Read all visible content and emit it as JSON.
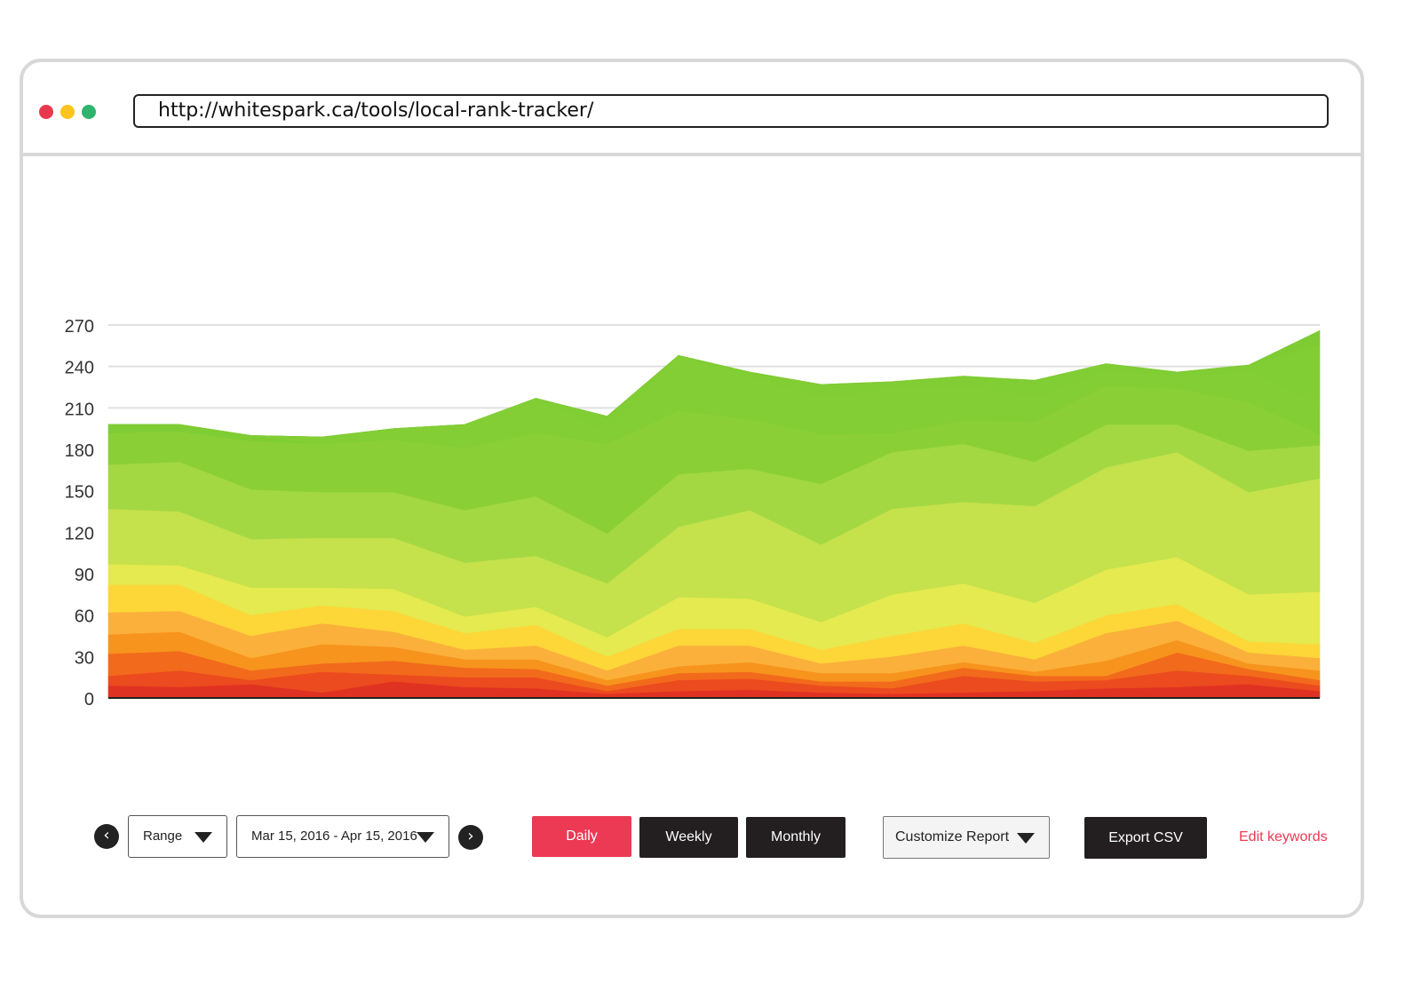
{
  "browser": {
    "url": "http://whitespark.ca/tools/local-rank-tracker/",
    "window_dots": [
      "#e8384f",
      "#fcc41e",
      "#2fb36d"
    ]
  },
  "controls": {
    "prev_icon": "chevron-left-icon",
    "next_icon": "chevron-right-icon",
    "range_label": "Range",
    "date_range": "Mar 15, 2016 - Apr 15, 2016",
    "tabs": [
      {
        "label": "Daily",
        "active": true
      },
      {
        "label": "Weekly",
        "active": false
      },
      {
        "label": "Monthly",
        "active": false
      }
    ],
    "customize_label": "Customize Report",
    "export_label": "Export CSV",
    "edit_keywords_label": "Edit keywords",
    "accent_color": "#ec3954",
    "button_color": "#231f20"
  },
  "chart_data": {
    "type": "area",
    "stacked": true,
    "ylim": [
      0,
      270
    ],
    "yticks": [
      0,
      30,
      60,
      90,
      120,
      150,
      180,
      210,
      240,
      270
    ],
    "grid": true,
    "x_count": 18,
    "series": [
      {
        "color": "#e03222",
        "values": [
          9,
          8,
          10,
          4,
          12,
          8,
          7,
          3,
          5,
          6,
          4,
          3,
          4,
          5,
          7,
          8,
          10,
          5
        ]
      },
      {
        "color": "#ec4a1f",
        "values": [
          7,
          12,
          3,
          15,
          5,
          7,
          8,
          2,
          8,
          8,
          5,
          4,
          12,
          7,
          6,
          12,
          6,
          4
        ]
      },
      {
        "color": "#f26a1b",
        "values": [
          16,
          14,
          7,
          6,
          10,
          7,
          6,
          4,
          5,
          5,
          3,
          5,
          6,
          4,
          3,
          13,
          5,
          4
        ]
      },
      {
        "color": "#f7941d",
        "values": [
          14,
          14,
          9,
          14,
          10,
          6,
          7,
          4,
          5,
          7,
          6,
          6,
          4,
          3,
          11,
          9,
          4,
          7
        ]
      },
      {
        "color": "#fbb03b",
        "values": [
          16,
          15,
          16,
          15,
          11,
          7,
          10,
          7,
          15,
          12,
          7,
          12,
          12,
          9,
          20,
          14,
          8,
          9
        ]
      },
      {
        "color": "#fdd638",
        "values": [
          20,
          19,
          15,
          13,
          15,
          12,
          15,
          10,
          12,
          12,
          10,
          15,
          16,
          12,
          13,
          12,
          8,
          10
        ]
      },
      {
        "color": "#e4ea4f",
        "values": [
          15,
          14,
          20,
          13,
          16,
          12,
          13,
          14,
          23,
          22,
          20,
          30,
          29,
          29,
          33,
          34,
          34,
          38
        ]
      },
      {
        "color": "#c5e14b",
        "values": [
          40,
          39,
          35,
          36,
          37,
          39,
          37,
          39,
          51,
          64,
          56,
          62,
          59,
          70,
          74,
          76,
          74,
          82
        ]
      },
      {
        "color": "#a3d843",
        "values": [
          32,
          36,
          36,
          33,
          33,
          38,
          43,
          36,
          38,
          30,
          44,
          41,
          42,
          32,
          31,
          20,
          30,
          24
        ]
      },
      {
        "color": "#8bcf37",
        "values": [
          23,
          22,
          35,
          35,
          38,
          45,
          46,
          65,
          46,
          36,
          36,
          14,
          17,
          29,
          28,
          26,
          35,
          8
        ]
      },
      {
        "color": "#7ecd34",
        "values": [
          6,
          5,
          0,
          0,
          0,
          0,
          0,
          0,
          0,
          0,
          0,
          0,
          0,
          0,
          0,
          0,
          0,
          0
        ]
      },
      {
        "color": "#7fcd33",
        "values": [
          0,
          0,
          4,
          0,
          0,
          0,
          0,
          0,
          0,
          0,
          0,
          0,
          0,
          0,
          0,
          0,
          0,
          0
        ]
      },
      {
        "color": "#83ce35",
        "values": [
          0,
          0,
          0,
          5,
          8,
          17,
          25,
          9,
          40,
          30,
          27,
          32,
          25,
          18,
          11,
          9,
          22,
          23
        ]
      },
      {
        "color": "#80cd34",
        "values": [
          0,
          0,
          0,
          0,
          0,
          0,
          0,
          11,
          0,
          4,
          9,
          5,
          7,
          12,
          5,
          3,
          5,
          42
        ]
      },
      {
        "color": "#7ecb33",
        "values": [
          0,
          0,
          0,
          0,
          0,
          0,
          0,
          0,
          0,
          0,
          0,
          0,
          0,
          0,
          0,
          0,
          0,
          10
        ]
      }
    ],
    "line_color": "#222222"
  }
}
